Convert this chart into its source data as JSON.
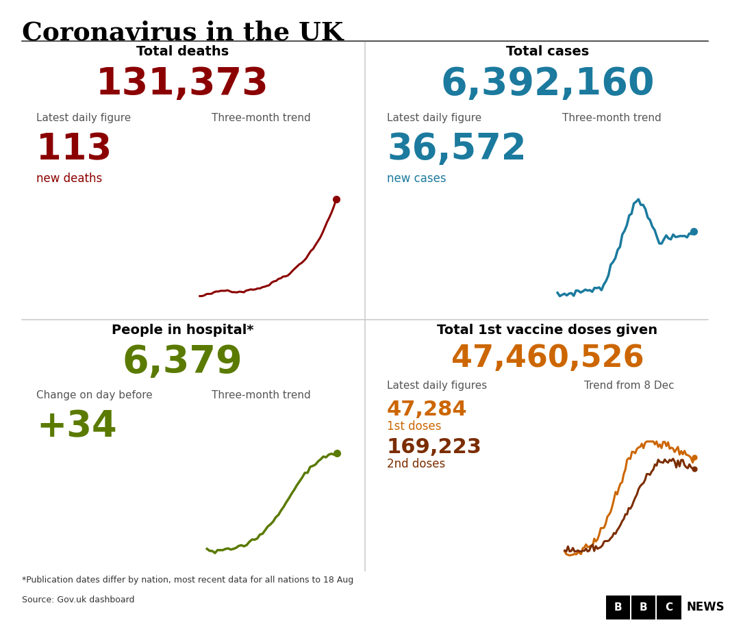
{
  "title": "Coronavirus in the UK",
  "footnote": "*Publication dates differ by nation, most recent data for all nations to 18 Aug",
  "source": "Source: Gov.uk dashboard",
  "panels": [
    {
      "title": "Total deaths",
      "total": "131,373",
      "total_color": "#8B0000",
      "sub_label_left": "Latest daily figure",
      "sub_label_right": "Three-month trend",
      "daily_value": "113",
      "daily_label": "new deaths",
      "daily_color": "#8B0000",
      "trend_color": "#8B0000"
    },
    {
      "title": "Total cases",
      "total": "6,392,160",
      "total_color": "#1B7A9E",
      "sub_label_left": "Latest daily figure",
      "sub_label_right": "Three-month trend",
      "daily_value": "36,572",
      "daily_label": "new cases",
      "daily_color": "#1B7A9E",
      "trend_color": "#1B7A9E"
    },
    {
      "title": "People in hospital*",
      "total": "6,379",
      "total_color": "#5A7A00",
      "sub_label_left": "Change on day before",
      "sub_label_right": "Three-month trend",
      "daily_value": "+34",
      "daily_label": "",
      "daily_color": "#5A7A00",
      "trend_color": "#5A7A00"
    },
    {
      "title": "Total 1st vaccine doses given",
      "total": "47,460,526",
      "total_color": "#CC6600",
      "sub_label_left": "Latest daily figures",
      "sub_label_right": "Trend from 8 Dec",
      "daily_value_1": "47,284",
      "daily_label_1": "1st doses",
      "daily_color_1": "#CC6600",
      "daily_value_2": "169,223",
      "daily_label_2": "2nd doses",
      "daily_color_2": "#7B2D00"
    }
  ],
  "divider_color": "#cccccc",
  "label_color": "#555555",
  "footer_color": "#333333"
}
